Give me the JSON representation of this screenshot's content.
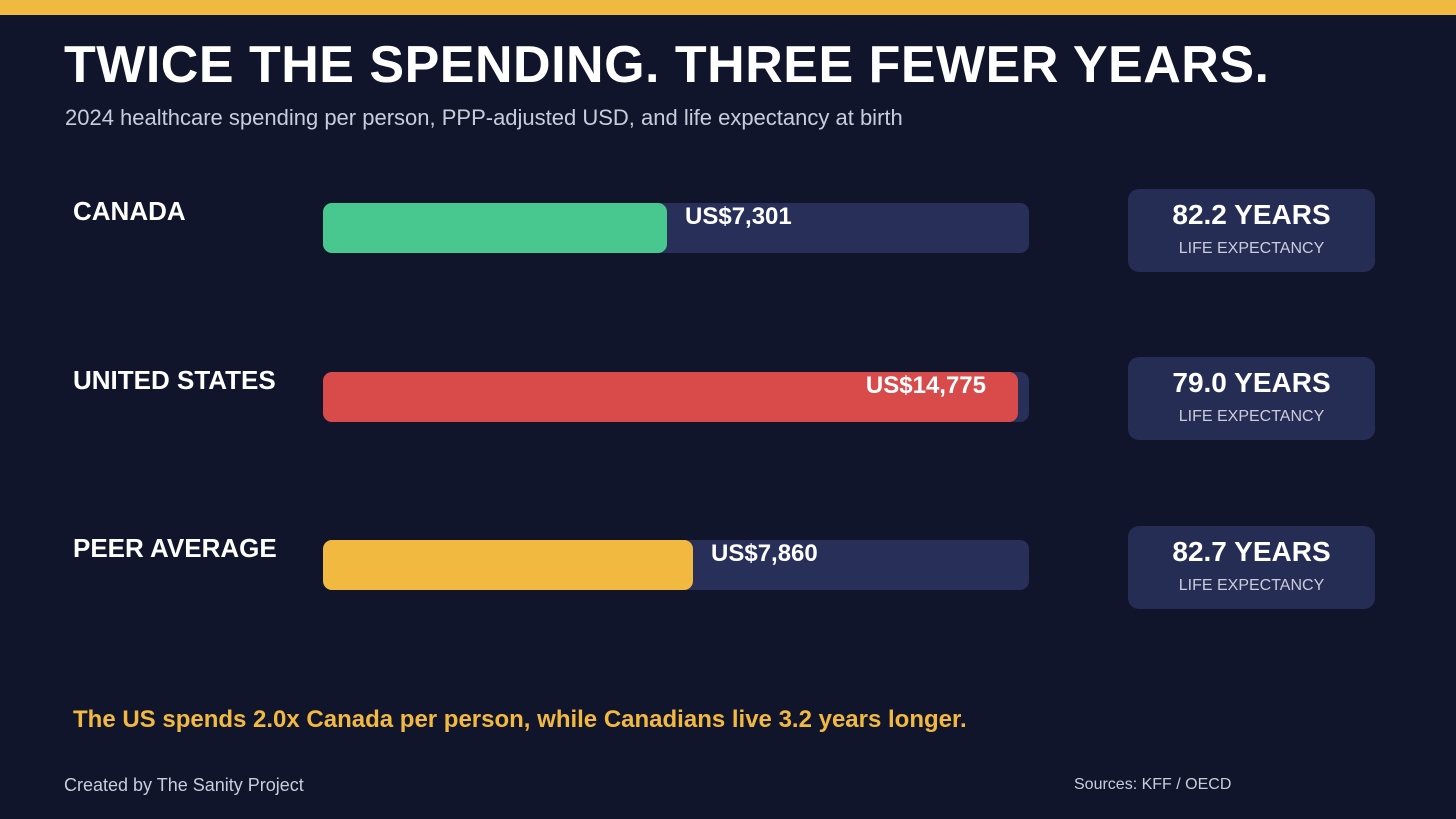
{
  "header": {
    "title": "TWICE THE SPENDING. THREE FEWER YEARS.",
    "subtitle": "2024 healthcare spending per person, PPP-adjusted USD, and life expectancy at birth"
  },
  "colors": {
    "accent": "#f2b941",
    "background": "#11152b",
    "track": "#28305a",
    "card": "#262d54"
  },
  "chart_data": {
    "type": "bar",
    "orientation": "horizontal",
    "title": "TWICE THE SPENDING. THREE FEWER YEARS.",
    "subtitle": "2024 healthcare spending per person, PPP-adjusted USD, and life expectancy at birth",
    "categories": [
      "CANADA",
      "UNITED STATES",
      "PEER AVERAGE"
    ],
    "xlim": [
      0,
      15000
    ],
    "grid": false,
    "series": [
      {
        "values": [
          7301,
          14775,
          7860
        ],
        "value_labels": [
          "US$7,301",
          "US$14,775",
          "US$7,860"
        ],
        "colors": [
          "#48c78e",
          "#d94b4b",
          "#f2b941"
        ]
      }
    ],
    "life_expectancy": {
      "values": [
        82.2,
        79.0,
        82.7
      ],
      "value_labels": [
        "82.2 YEARS",
        "79.0 YEARS",
        "82.7 YEARS"
      ],
      "label": "LIFE EXPECTANCY"
    }
  },
  "takeaway": "The US spends 2.0x Canada per person, while Canadians live 3.2 years longer.",
  "footer": {
    "credit": "Created by The Sanity Project",
    "sources": "Sources: KFF / OECD"
  }
}
